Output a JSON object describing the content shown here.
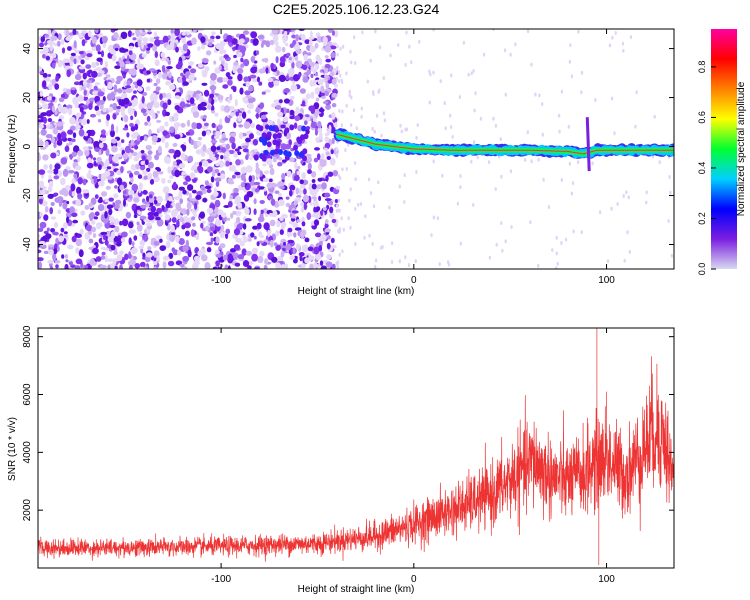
{
  "title": "C2E5.2025.106.12.23.G24",
  "chart_data": [
    {
      "type": "heatmap",
      "xlabel": "Height of straight line (km)",
      "ylabel": "Frequency (Hz)",
      "xlim": [
        -195,
        135
      ],
      "ylim": [
        -50,
        48
      ],
      "x_ticks": [
        -100,
        0,
        100
      ],
      "y_ticks": [
        -40,
        -20,
        0,
        20,
        40
      ],
      "colorbar": {
        "label": "Normalized spectral amplitude",
        "range": [
          0.0,
          0.95
        ],
        "ticks": [
          0.0,
          0.2,
          0.4,
          0.6,
          0.8
        ],
        "colormap": [
          "#ffffff",
          "#dcc8f4",
          "#7a1fe0",
          "#2020ff",
          "#00d8ff",
          "#00ff40",
          "#ffff00",
          "#ff8000",
          "#ff0000",
          "#ff00a0"
        ]
      },
      "ridge": {
        "description_points": [
          {
            "x": -40,
            "y": 5
          },
          {
            "x": -30,
            "y": 3
          },
          {
            "x": -20,
            "y": 1
          },
          {
            "x": -10,
            "y": 0
          },
          {
            "x": 0,
            "y": -1
          },
          {
            "x": 20,
            "y": -1.5
          },
          {
            "x": 60,
            "y": -1.5
          },
          {
            "x": 80,
            "y": -2
          },
          {
            "x": 88,
            "y": -3
          },
          {
            "x": 95,
            "y": -1.5
          },
          {
            "x": 135,
            "y": -1.5
          }
        ]
      }
    },
    {
      "type": "line",
      "xlabel": "Height of straight line (km)",
      "ylabel": "SNR (10 * v/v)",
      "xlim": [
        -195,
        135
      ],
      "ylim": [
        0,
        8300
      ],
      "x_ticks": [
        -100,
        0,
        100
      ],
      "y_ticks": [
        2000,
        4000,
        6000,
        8000
      ],
      "series_color": "#ee3333",
      "trend_points": [
        {
          "x": -195,
          "y": 700
        },
        {
          "x": -150,
          "y": 700
        },
        {
          "x": -100,
          "y": 750
        },
        {
          "x": -50,
          "y": 850
        },
        {
          "x": -20,
          "y": 1100
        },
        {
          "x": 0,
          "y": 1500
        },
        {
          "x": 20,
          "y": 2000
        },
        {
          "x": 40,
          "y": 2500
        },
        {
          "x": 55,
          "y": 3300
        },
        {
          "x": 62,
          "y": 3700
        },
        {
          "x": 70,
          "y": 3200
        },
        {
          "x": 80,
          "y": 3000
        },
        {
          "x": 88,
          "y": 3300
        },
        {
          "x": 94,
          "y": 3600
        },
        {
          "x": 100,
          "y": 3800
        },
        {
          "x": 110,
          "y": 3200
        },
        {
          "x": 120,
          "y": 4200
        },
        {
          "x": 125,
          "y": 4900
        },
        {
          "x": 130,
          "y": 4400
        },
        {
          "x": 135,
          "y": 3000
        }
      ],
      "spikes": [
        {
          "x": 95,
          "y": 8300
        },
        {
          "x": 96,
          "y": 100
        },
        {
          "x": 100,
          "y": 6100
        }
      ]
    }
  ]
}
